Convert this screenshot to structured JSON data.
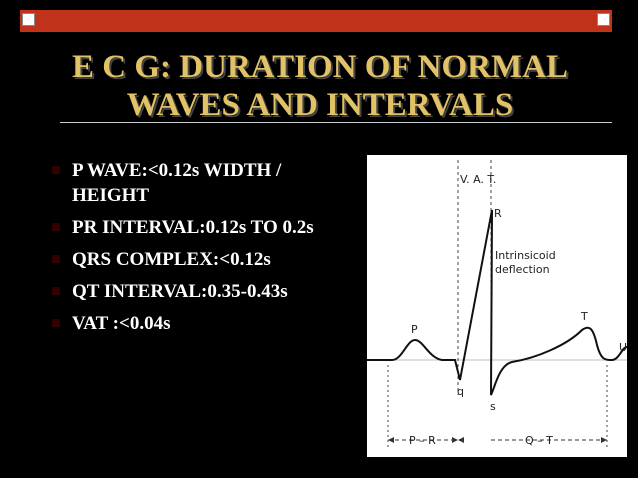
{
  "header": {
    "title": [
      "E C G: DURATION OF NORMAL",
      "WAVES AND INTERVALS"
    ]
  },
  "bullets": [
    "P WAVE:<0.12s WIDTH / HEIGHT",
    "PR INTERVAL:0.12s TO 0.2s",
    "QRS COMPLEX:<0.12s",
    "QT INTERVAL:0.35-0.43s",
    "VAT :<0.04s"
  ],
  "figure": {
    "vat": "V. A. T.",
    "r": "R",
    "intrinsicoid": [
      "Intrinsicoid",
      "deflection"
    ],
    "p": "P",
    "t": "T",
    "u": "U",
    "q": "q",
    "s": "s",
    "pr": "P – R",
    "qt": "Q – T"
  }
}
